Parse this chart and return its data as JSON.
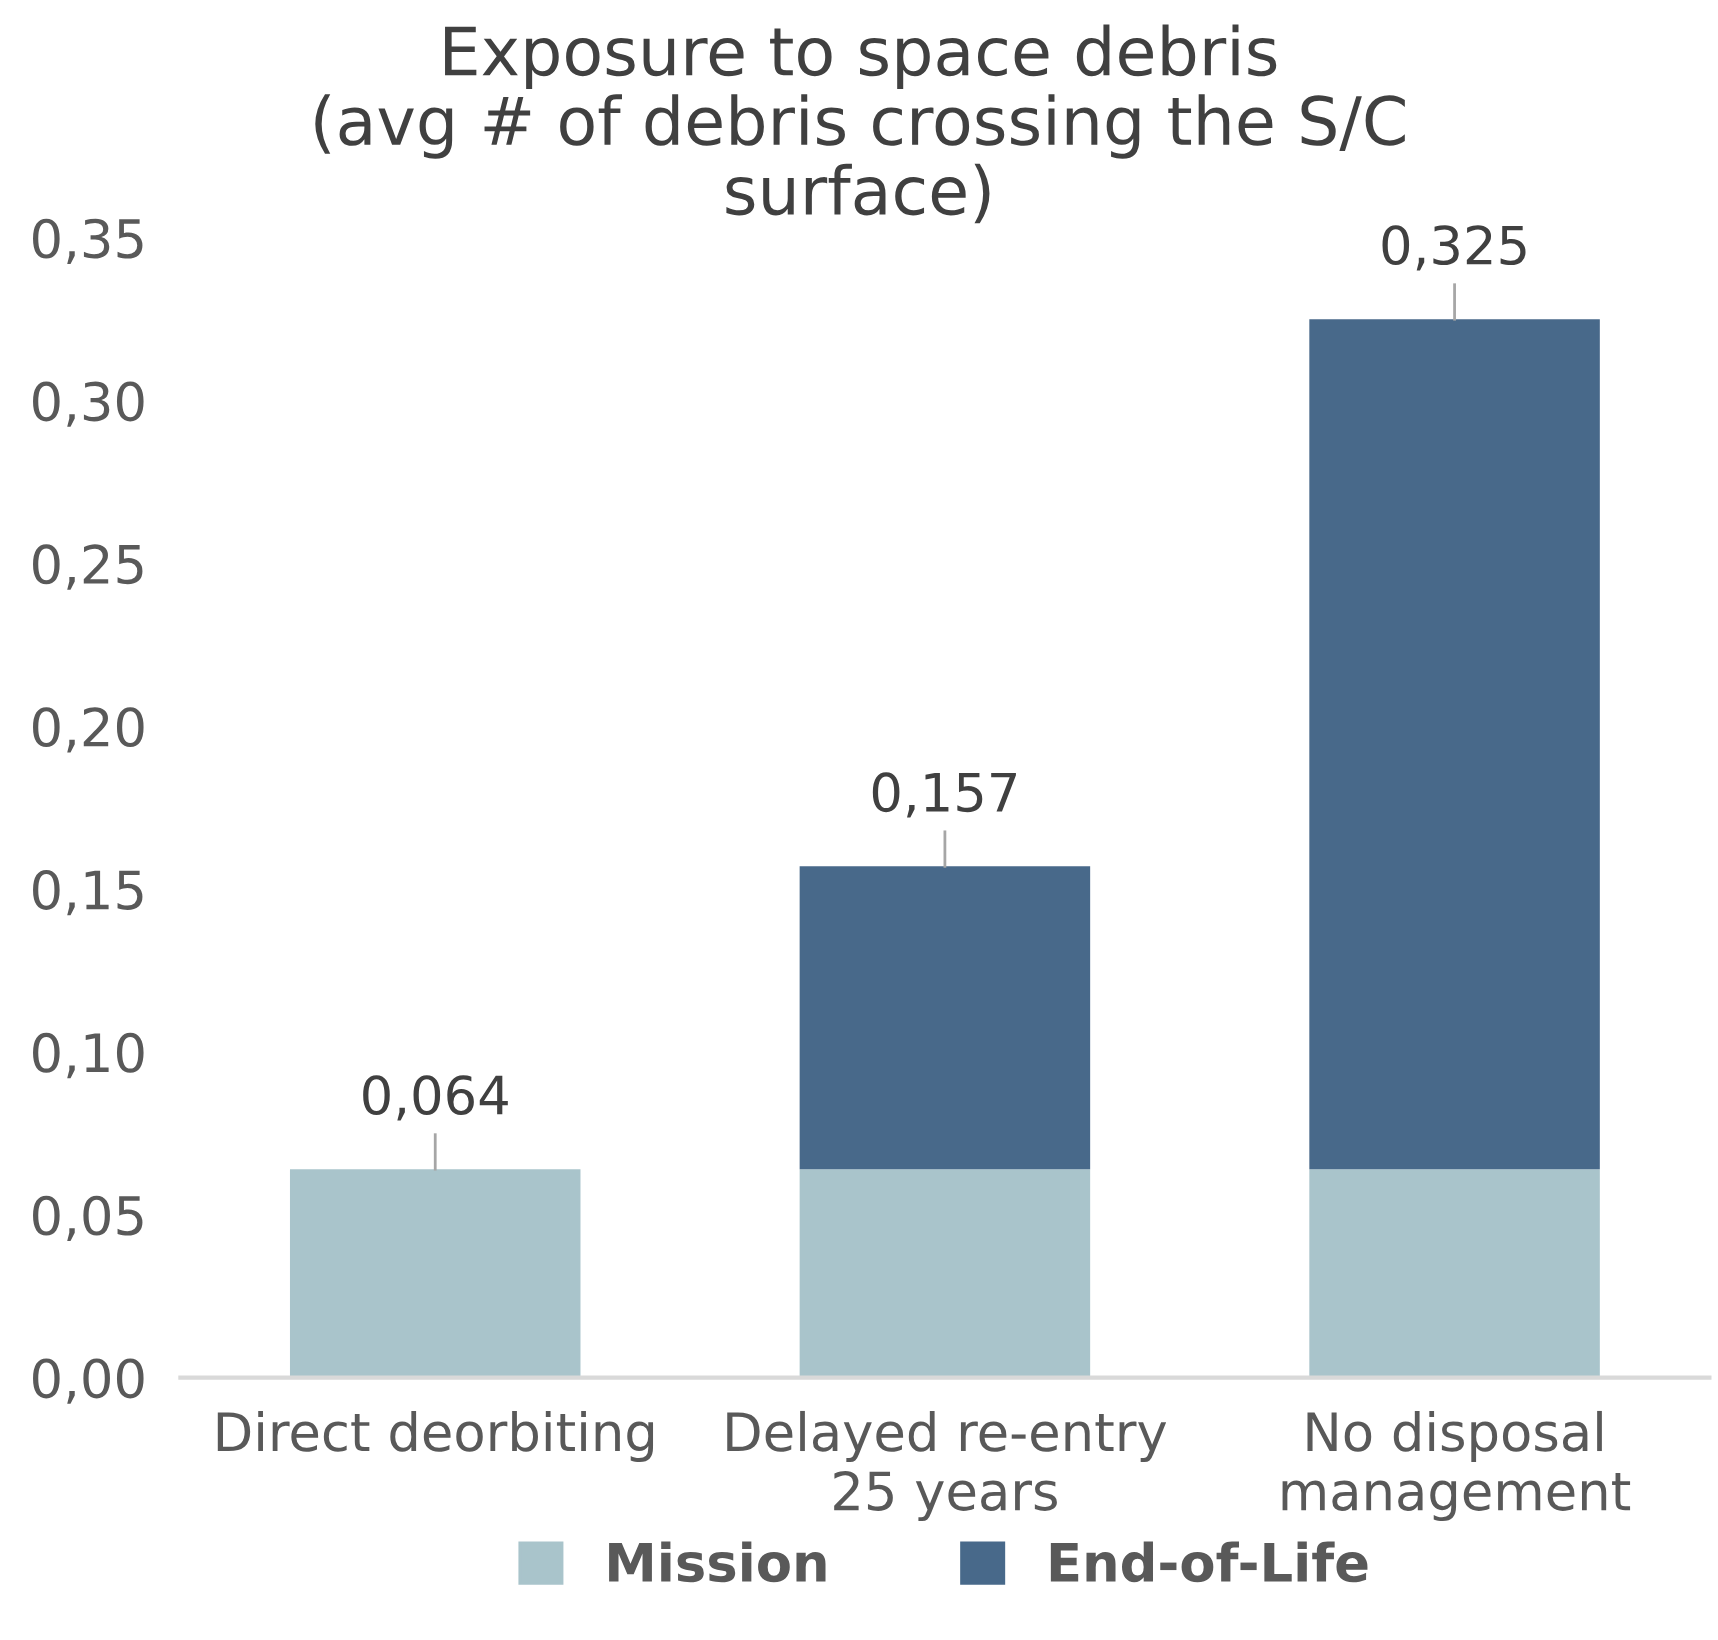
{
  "chart_data": {
    "type": "bar",
    "title": "Exposure to space debris\n(avg # of debris crossing the S/C\nsurface)",
    "categories": [
      "Direct deorbiting",
      "Delayed re-entry\n25 years",
      "No disposal\nmanagement"
    ],
    "stacked": true,
    "series": [
      {
        "name": "Mission",
        "color": "#a9c4cb",
        "values": [
          0.064,
          0.064,
          0.064
        ]
      },
      {
        "name": "End-of-Life",
        "color": "#48698a",
        "values": [
          0,
          0.093,
          0.261
        ]
      }
    ],
    "totals": [
      "0,064",
      "0,157",
      "0,325"
    ],
    "ylim": [
      0,
      0.35
    ],
    "yticks": [
      {
        "value": 0,
        "label": "0,00"
      },
      {
        "value": 0.05,
        "label": "0,05"
      },
      {
        "value": 0.1,
        "label": "0,10"
      },
      {
        "value": 0.15,
        "label": "0,15"
      },
      {
        "value": 0.2,
        "label": "0,20"
      },
      {
        "value": 0.25,
        "label": "0,25"
      },
      {
        "value": 0.3,
        "label": "0,30"
      },
      {
        "value": 0.35,
        "label": "0,35"
      }
    ],
    "grid": false,
    "legend": "bottom"
  }
}
